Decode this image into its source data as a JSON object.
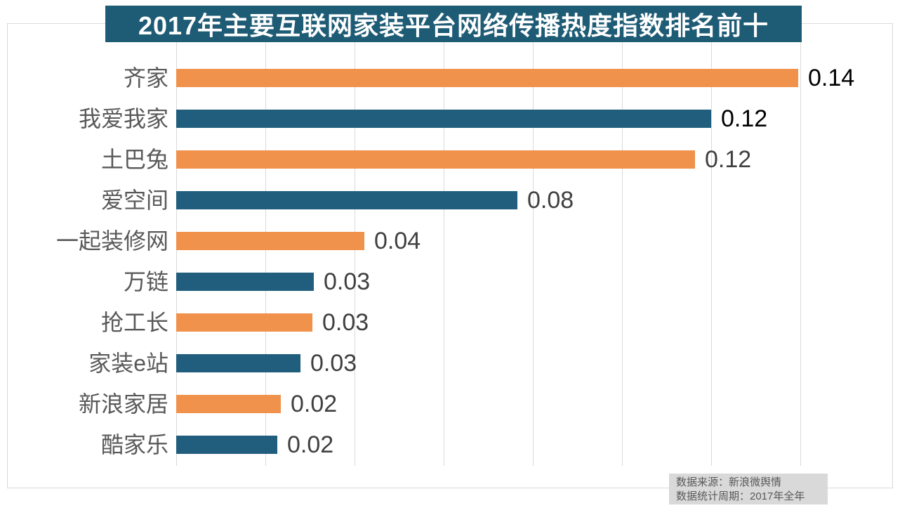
{
  "title": "2017年主要互联网家装平台网络传播热度指数排名前十",
  "source_note": {
    "line1": "数据来源：新浪微舆情",
    "line2": "数据统计周期：2017年全年"
  },
  "colors": {
    "title_bg": "#1E5B75",
    "title_text": "#FFFFFF",
    "bar_orange": "#F0924C",
    "bar_blue": "#215E7D",
    "grid": "#D9D9D9",
    "category_text": "#595959",
    "source_bg": "#D9D9D9",
    "source_text": "#595959"
  },
  "chart_data": {
    "type": "bar",
    "orientation": "horizontal",
    "title": "2017年主要互联网家装平台网络传播热度指数排名前十",
    "categories": [
      "齐家",
      "我爱我家",
      "土巴兔",
      "爱空间",
      "一起装修网",
      "万链",
      "抢工长",
      "家装e站",
      "新浪家居",
      "酷家乐"
    ],
    "values": [
      0.14,
      0.12,
      0.12,
      0.08,
      0.04,
      0.03,
      0.03,
      0.03,
      0.02,
      0.02
    ],
    "value_labels": [
      "0.14",
      "0.12",
      "0.12",
      "0.08",
      "0.04",
      "0.03",
      "0.03",
      "0.03",
      "0.02",
      "0.02"
    ],
    "values_precise_est": [
      0.1395,
      0.12,
      0.1164,
      0.0765,
      0.0422,
      0.0309,
      0.0306,
      0.0279,
      0.0235,
      0.0227
    ],
    "bar_color_keys": [
      "orange",
      "blue",
      "orange",
      "blue",
      "orange",
      "blue",
      "orange",
      "blue",
      "orange",
      "blue"
    ],
    "value_label_colors": [
      "#000000",
      "#000000",
      "#404040",
      "#404040",
      "#404040",
      "#404040",
      "#404040",
      "#404040",
      "#404040",
      "#404040"
    ],
    "xlabel": "",
    "ylabel": "",
    "xlim": [
      0,
      0.16
    ],
    "grid_interval": 0.02,
    "grid": "vertical",
    "legend_position": "none"
  }
}
